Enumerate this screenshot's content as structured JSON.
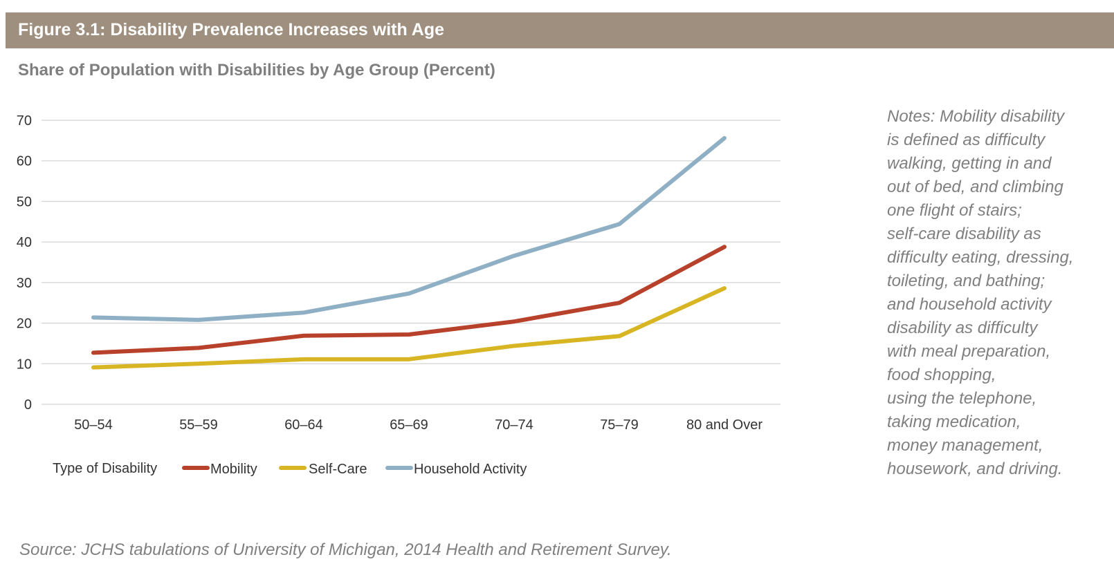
{
  "figure": {
    "title": "Figure 3.1: Disability Prevalence Increases with Age",
    "subtitle": "Share of Population with Disabilities by Age Group (Percent)"
  },
  "notes_lines": [
    "Notes: Mobility disability",
    "is defined as difficulty",
    "walking, getting in and",
    "out of bed, and climbing",
    "one flight of stairs;",
    "self-care disability as",
    "difficulty eating, dressing,",
    "toileting, and bathing;",
    "and household activity",
    "disability as difficulty",
    "with meal preparation,",
    "food shopping,",
    "using the telephone,",
    "taking medication,",
    "money management,",
    "housework, and driving."
  ],
  "source": "Source: JCHS tabulations of University of Michigan, 2014 Health and Retirement Survey.",
  "legend": {
    "title": "Type of Disability"
  },
  "chart_data": {
    "type": "line",
    "title": "Figure 3.1: Disability Prevalence Increases with Age",
    "subtitle": "Share of Population with Disabilities by Age Group (Percent)",
    "xlabel": "",
    "ylabel": "",
    "categories": [
      "50–54",
      "55–59",
      "60–64",
      "65–69",
      "70–74",
      "75–79",
      "80 and Over"
    ],
    "yticks": [
      0,
      10,
      20,
      30,
      40,
      50,
      60,
      70
    ],
    "ylim": [
      0,
      70
    ],
    "grid": "horizontal",
    "legend_position": "bottom-left",
    "series": [
      {
        "name": "Mobility",
        "color": "#b7412b",
        "values": [
          12.7,
          13.9,
          16.9,
          17.2,
          20.4,
          25.0,
          38.8
        ]
      },
      {
        "name": "Self-Care",
        "color": "#d8b623",
        "values": [
          9.1,
          10.0,
          11.1,
          11.1,
          14.4,
          16.8,
          28.6
        ]
      },
      {
        "name": "Household Activity",
        "color": "#8fafc4",
        "values": [
          21.4,
          20.8,
          22.6,
          27.3,
          36.6,
          44.4,
          65.6
        ]
      }
    ]
  }
}
